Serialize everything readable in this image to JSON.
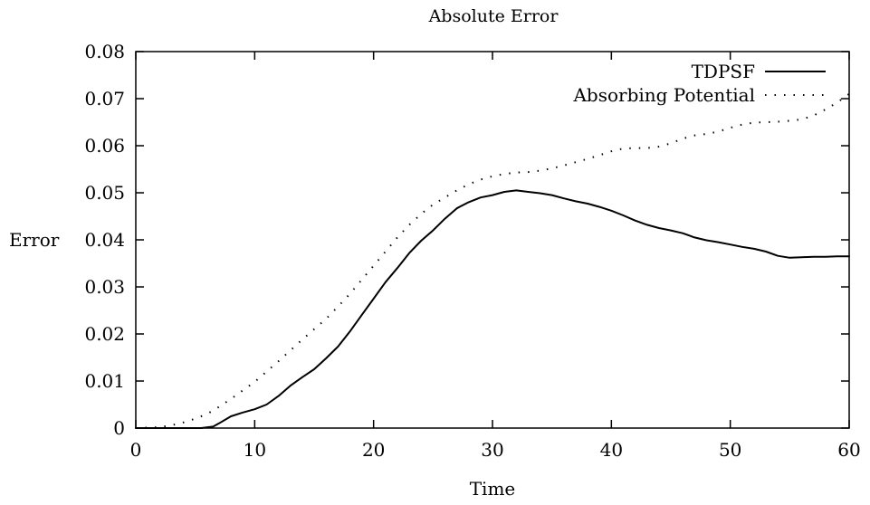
{
  "chart_data": {
    "type": "line",
    "title": "Absolute Error",
    "xlabel": "Time",
    "ylabel": "Error",
    "xlim": [
      0,
      60
    ],
    "ylim": [
      0,
      0.08
    ],
    "xticks": [
      "0",
      "10",
      "20",
      "30",
      "40",
      "50",
      "60"
    ],
    "yticks": [
      "0",
      "0.01",
      "0.02",
      "0.03",
      "0.04",
      "0.05",
      "0.06",
      "0.07",
      "0.08"
    ],
    "legend_position": "top-right",
    "grid": false,
    "series": [
      {
        "name": "TDPSF",
        "style": "solid",
        "color": "#000000",
        "x": [
          0,
          2,
          4,
          5.5,
          6.5,
          7,
          8,
          9,
          10,
          11,
          12,
          13,
          14,
          15,
          16,
          17,
          18,
          19,
          20,
          21,
          22,
          23,
          24,
          25,
          26,
          27,
          28,
          29,
          30,
          31,
          32,
          33,
          34,
          35,
          36,
          37,
          38,
          39,
          40,
          41,
          42,
          43,
          44,
          45,
          46,
          47,
          48,
          49,
          50,
          51,
          52,
          53,
          54,
          55,
          56,
          57,
          58,
          59,
          60
        ],
        "y": [
          0,
          0,
          0,
          0,
          0.0003,
          0.001,
          0.0025,
          0.0033,
          0.004,
          0.005,
          0.0068,
          0.009,
          0.0108,
          0.0125,
          0.0148,
          0.0173,
          0.0205,
          0.024,
          0.0275,
          0.031,
          0.034,
          0.0372,
          0.0398,
          0.042,
          0.0445,
          0.0467,
          0.048,
          0.049,
          0.0495,
          0.0502,
          0.0505,
          0.0502,
          0.0499,
          0.0495,
          0.0488,
          0.0482,
          0.0477,
          0.047,
          0.0462,
          0.0452,
          0.0441,
          0.0432,
          0.0425,
          0.042,
          0.0414,
          0.0405,
          0.0399,
          0.0395,
          0.039,
          0.0385,
          0.0381,
          0.0375,
          0.0366,
          0.0362,
          0.0363,
          0.0364,
          0.0364,
          0.0365,
          0.0365
        ]
      },
      {
        "name": "Absorbing Potential",
        "style": "dotted",
        "color": "#000000",
        "x": [
          0,
          2,
          3,
          4,
          5,
          6,
          7,
          8,
          9,
          10,
          11,
          12,
          13,
          14,
          15,
          16,
          17,
          18,
          19,
          20,
          21,
          22,
          23,
          24,
          25,
          26,
          27,
          28,
          29,
          30,
          31,
          32,
          33,
          34,
          35,
          36,
          37,
          38,
          39,
          40,
          41,
          42,
          43,
          44,
          45,
          46,
          47,
          48,
          49,
          50,
          51,
          52,
          53,
          54,
          55,
          56,
          57,
          58,
          59,
          60
        ],
        "y": [
          0,
          0.0002,
          0.0006,
          0.0012,
          0.002,
          0.003,
          0.0045,
          0.0062,
          0.008,
          0.0098,
          0.012,
          0.0142,
          0.0165,
          0.0188,
          0.021,
          0.0232,
          0.0258,
          0.0285,
          0.0315,
          0.0345,
          0.0375,
          0.0405,
          0.0432,
          0.0455,
          0.0475,
          0.049,
          0.0505,
          0.0518,
          0.0528,
          0.0535,
          0.054,
          0.0543,
          0.0544,
          0.0547,
          0.0552,
          0.0558,
          0.0565,
          0.0572,
          0.058,
          0.0588,
          0.0594,
          0.0595,
          0.0595,
          0.0598,
          0.0605,
          0.0615,
          0.0622,
          0.0625,
          0.063,
          0.0638,
          0.0645,
          0.0649,
          0.065,
          0.0651,
          0.0653,
          0.0656,
          0.0664,
          0.0677,
          0.0692,
          0.071
        ]
      }
    ]
  }
}
